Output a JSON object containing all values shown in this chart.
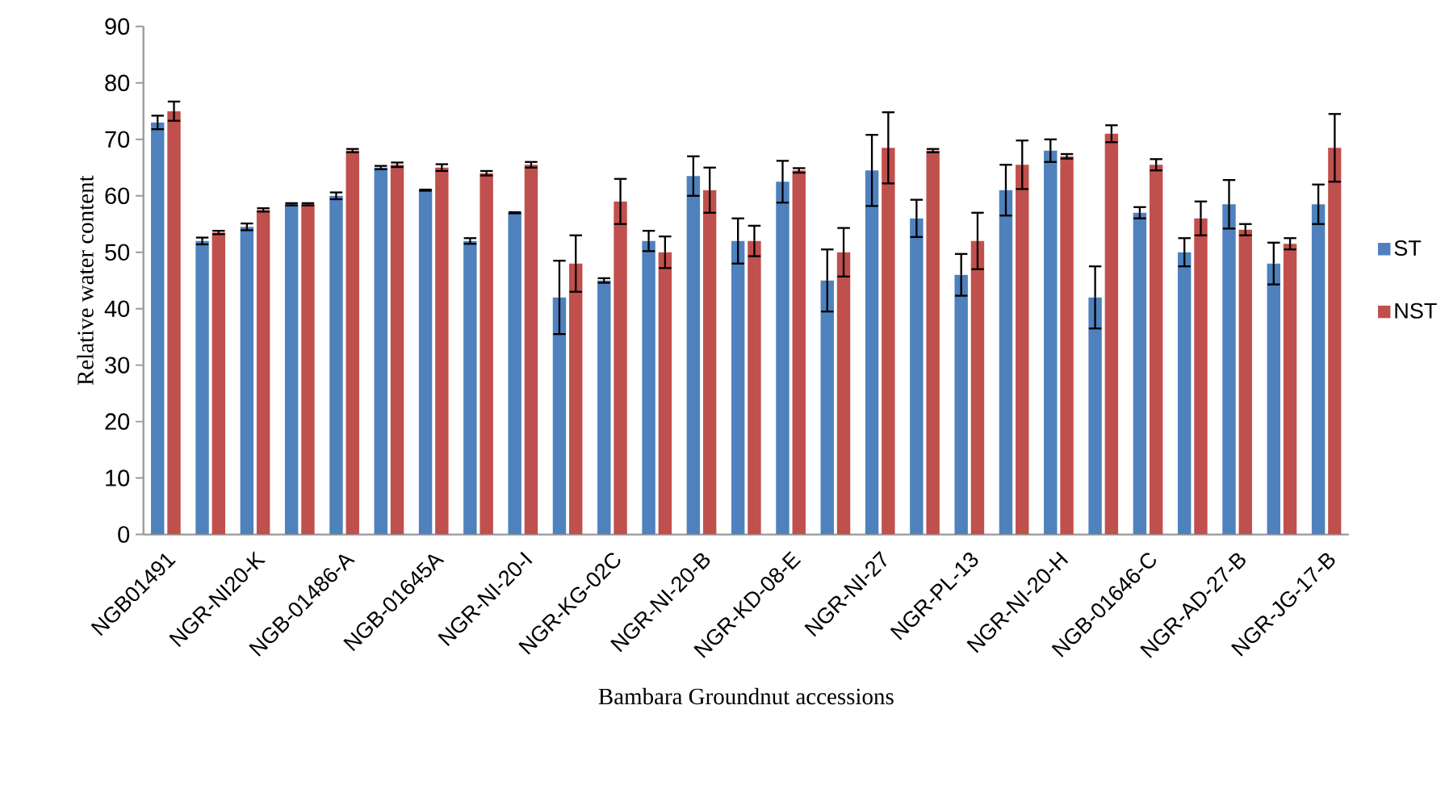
{
  "chart_data": {
    "type": "bar",
    "xlabel": "Bambara Groundnut accessions",
    "ylabel": "Relative water content",
    "categories": [
      "NGB01491",
      null,
      "NGR-NI20-K",
      null,
      "NGB-01486-A",
      null,
      "NGB-01645A",
      null,
      "NGR-NI-20-I",
      null,
      "NGR-KG-02C",
      null,
      "NGR-NI-20-B",
      null,
      "NGR-KD-08-E",
      null,
      "NGR-NI-27",
      null,
      "NGR-PL-13",
      null,
      "NGR-NI-20-H",
      null,
      "NGB-01646-C",
      null,
      "NGR-AD-27-B",
      null,
      "NGR-JG-17-B"
    ],
    "series": [
      {
        "name": "ST",
        "color": "#4f81bd",
        "values": [
          73,
          52,
          54.5,
          58.5,
          60,
          65,
          61,
          52,
          57,
          42,
          45,
          52,
          63.5,
          52,
          62.5,
          45,
          64.5,
          56,
          46,
          61,
          68,
          42,
          57,
          50,
          58.5,
          48,
          58.5
        ],
        "errors": [
          1.2,
          0.6,
          0.6,
          0.2,
          0.6,
          0.3,
          0.1,
          0.5,
          0.1,
          6.5,
          0.4,
          1.8,
          3.5,
          4,
          3.7,
          5.5,
          6.3,
          3.3,
          3.7,
          4.5,
          2,
          5.5,
          1,
          2.5,
          4.3,
          3.7,
          3.5
        ]
      },
      {
        "name": "NST",
        "color": "#c0504d",
        "values": [
          75,
          53.5,
          57.5,
          58.5,
          68,
          65.5,
          65,
          64,
          65.5,
          48,
          59,
          50,
          61,
          52,
          64.5,
          50,
          68.5,
          68,
          52,
          65.5,
          67,
          71,
          65.5,
          56,
          54,
          51.5,
          68.5
        ],
        "errors": [
          1.7,
          0.3,
          0.3,
          0.2,
          0.3,
          0.4,
          0.6,
          0.4,
          0.5,
          5,
          4,
          2.8,
          4,
          2.7,
          0.4,
          4.3,
          6.3,
          0.3,
          5,
          4.3,
          0.4,
          1.5,
          1,
          3,
          1,
          1,
          6
        ]
      }
    ],
    "ylim": [
      0,
      90
    ],
    "yticks": [
      0,
      10,
      20,
      30,
      40,
      50,
      60,
      70,
      80,
      90
    ],
    "grid": false,
    "legend": "right"
  }
}
